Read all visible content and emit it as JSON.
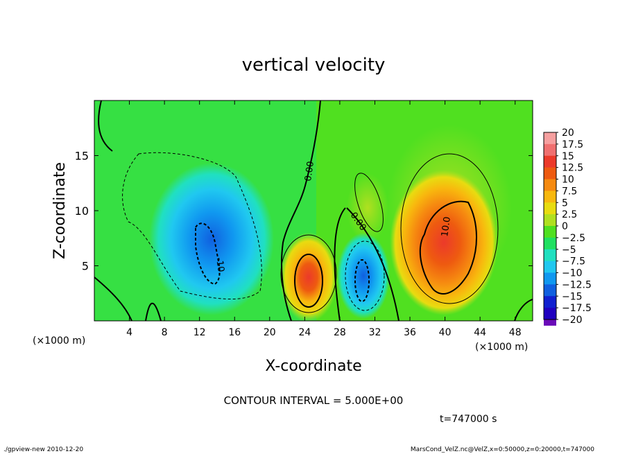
{
  "chart_data": {
    "type": "heatmap",
    "title": "vertical velocity",
    "xlabel": "X-coordinate",
    "ylabel": "Z-coordinate",
    "x_unit_left": "(×1000 m)",
    "x_unit_right": "(×1000 m)",
    "xlim": [
      0,
      50
    ],
    "ylim": [
      0,
      20
    ],
    "x_ticks": [
      4,
      8,
      12,
      16,
      20,
      24,
      28,
      32,
      36,
      40,
      44,
      48
    ],
    "y_ticks": [
      5,
      10,
      15
    ],
    "contour_interval_text": "CONTOUR INTERVAL = 5.000E+00",
    "time_text": "t=747000 s",
    "footer_left": "./gpview-new  2010-12-20",
    "footer_right": "MarsCond_VelZ.nc@VelZ,x=0:50000,z=0:20000,t=747000",
    "contour_labels": [
      {
        "text": "0.00",
        "x": 25.0,
        "z": 13.0
      },
      {
        "text": "0.00",
        "x": 30.5,
        "z": 9.5
      },
      {
        "text": "10.0",
        "x": 40.0,
        "z": 8.5
      },
      {
        "text": "-10.",
        "x": 14.5,
        "z": 5.0
      }
    ],
    "colorbar": {
      "labels": [
        "20",
        "17.5",
        "15",
        "12.5",
        "10",
        "7.5",
        "5",
        "2.5",
        "0",
        "−2.5",
        "−5",
        "−7.5",
        "−10",
        "−12.5",
        "−15",
        "−17.5",
        "−20"
      ],
      "colors": [
        "#f6a0a0",
        "#f07070",
        "#ec3a2a",
        "#ee5a10",
        "#f68a10",
        "#f8b80e",
        "#e8dc10",
        "#b0e020",
        "#50e020",
        "#20e060",
        "#20e0c0",
        "#20c8f0",
        "#1098f0",
        "#1060e0",
        "#1020d0",
        "#2000c0",
        "#6a0ab8"
      ]
    },
    "features": [
      {
        "kind": "updraft",
        "x": 24.5,
        "z": 3.8,
        "peak": 15
      },
      {
        "kind": "updraft",
        "x": 40.5,
        "z": 7.2,
        "peak": 12.5
      },
      {
        "kind": "downdraft",
        "x": 13.0,
        "z": 6.5,
        "peak": -12.5
      },
      {
        "kind": "downdraft",
        "x": 30.5,
        "z": 4.0,
        "peak": -12.5
      }
    ]
  }
}
